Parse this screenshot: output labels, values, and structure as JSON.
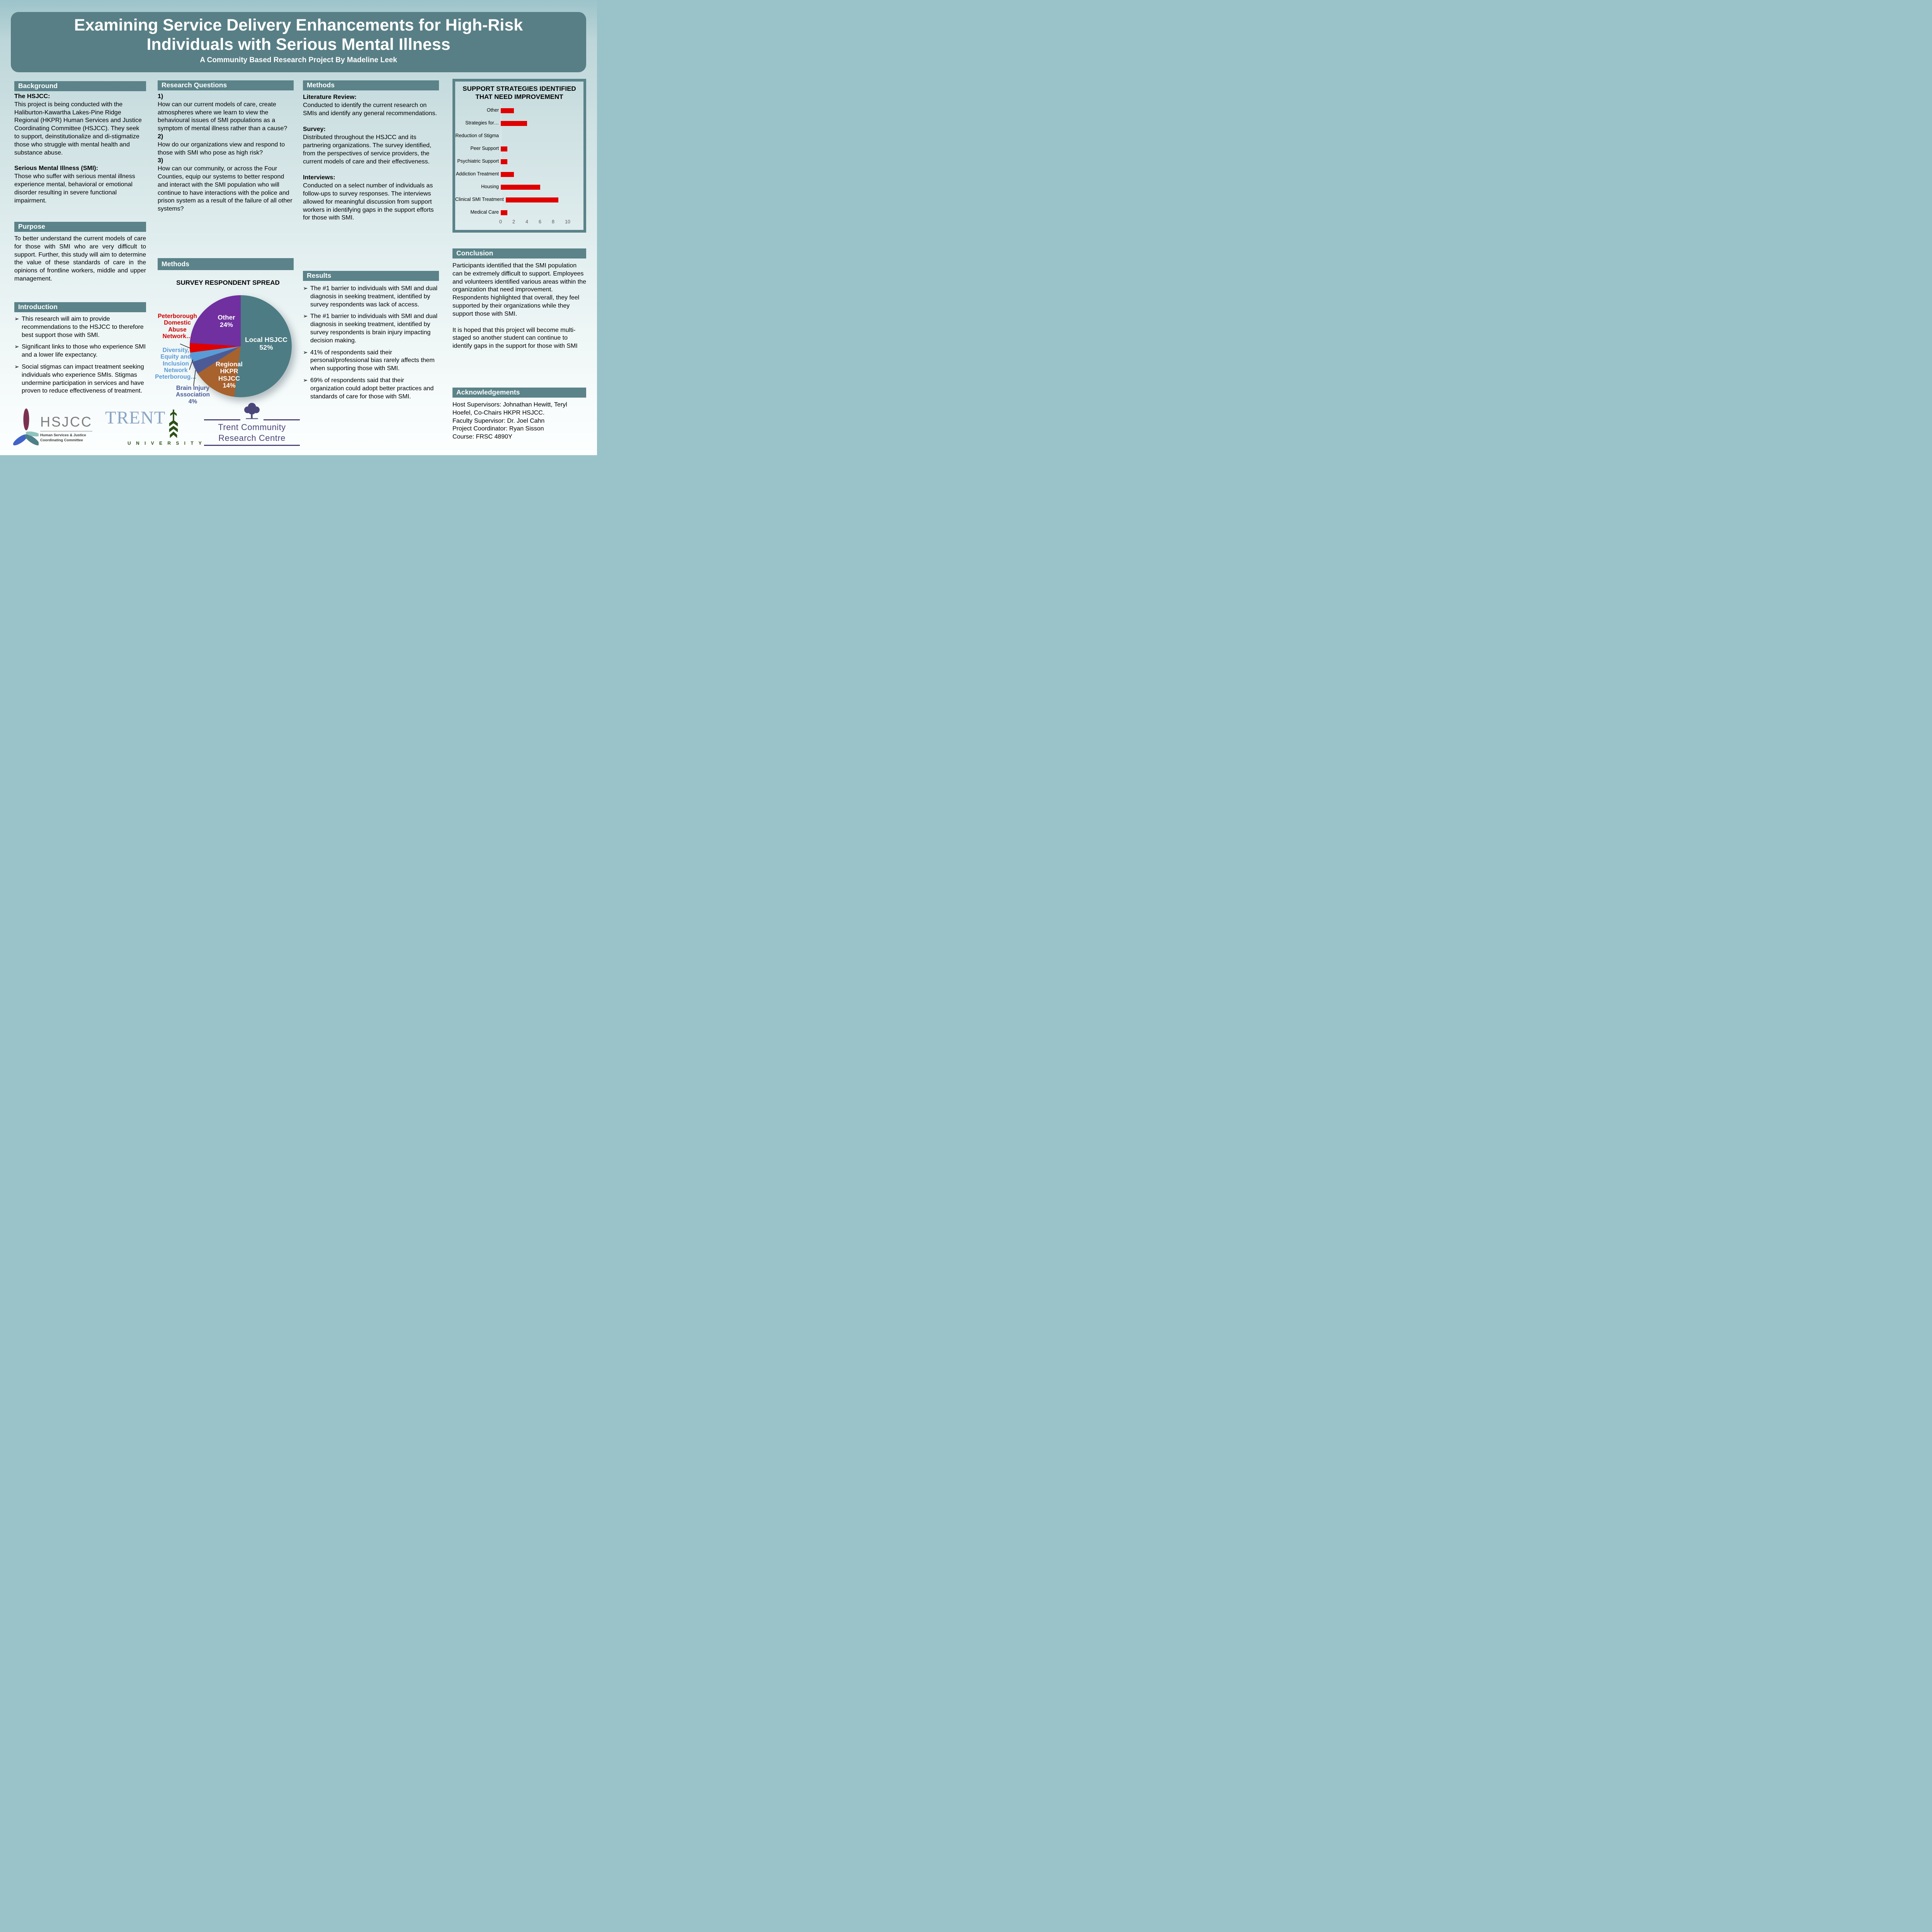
{
  "poster": {
    "title": "Examining Service Delivery Enhancements for High-Risk Individuals with Serious Mental Illness",
    "subtitle": "A Community Based Research Project By Madeline Leek"
  },
  "colors": {
    "banner": "#587f85",
    "section_header": "#5b8389",
    "bar_red": "#e00000",
    "page_top": "#9cc4ca",
    "page_bottom": "#fdffff"
  },
  "bullet_glyph": "➢",
  "background": {
    "header": "Background",
    "hsjcc_label": "The HSJCC:",
    "hsjcc_text": "This project is being conducted with the Haliburton-Kawartha Lakes-Pine Ridge Regional (HKPR) Human Services and Justice Coordinating Committee (HSJCC). They seek to support, deinstitutionalize and di-stigmatize those who struggle with mental health and substance abuse.",
    "smi_label": "Serious Mental Illness (SMI):",
    "smi_text": "Those who suffer with serious mental illness experience mental, behavioral or emotional disorder resulting in severe functional impairment."
  },
  "purpose": {
    "header": "Purpose",
    "text": "To better understand the current models of care for those with SMI who are very difficult to support. Further, this study will aim to determine the value of these standards of care in the opinions of frontline workers, middle and upper management."
  },
  "introduction": {
    "header": "Introduction",
    "bullets": [
      "This research will aim to provide recommendations to the HSJCC to therefore best support those with SMI.",
      "Significant links to those who experience SMI and a lower life expectancy.",
      "Social stigmas can impact treatment seeking individuals who experience SMIs. Stigmas undermine participation in services and have proven to reduce effectiveness of treatment."
    ]
  },
  "research_questions": {
    "header": "Research Questions",
    "items": [
      {
        "num": "1)",
        "text": "How can our current models of care, create atmospheres where we learn to view the behavioural issues of SMI populations as a symptom of mental illness rather than a cause?"
      },
      {
        "num": "2)",
        "text": "How do our organizations view and respond to those with SMI who pose as high risk?"
      },
      {
        "num": "3)",
        "text": "How can our community, or across the Four Counties, equip our systems to better respond and interact with the SMI population who will continue to have interactions with the police and prison system as a result of the failure of all other systems?"
      }
    ]
  },
  "methods_mid": {
    "header": "Methods"
  },
  "methods": {
    "header": "Methods",
    "sections": [
      {
        "label": "Literature Review:",
        "text": "Conducted to identify the current research on SMIs and identify any general recommendations."
      },
      {
        "label": "Survey:",
        "text": "Distributed throughout the HSJCC and its partnering organizations. The survey identified, from the perspectives of service providers, the current models of care and their effectiveness."
      },
      {
        "label": "Interviews:",
        "text": "Conducted on a select number of individuals as follow-ups to survey responses. The interviews allowed for meaningful discussion from support workers in identifying gaps in the support efforts for those with SMI."
      }
    ]
  },
  "results": {
    "header": "Results",
    "bullets": [
      "The #1 barrier to individuals with SMI and dual diagnosis in seeking treatment, identified by survey respondents was lack of access.",
      "The #1 barrier to individuals with SMI and dual diagnosis in seeking treatment, identified by survey respondents is brain injury impacting decision making.",
      "41% of respondents said their personal/professional bias rarely affects them when supporting those with SMI.",
      "69% of respondents said that their organization could adopt better practices and standards of care for those with SMI."
    ]
  },
  "conclusion": {
    "header": "Conclusion",
    "paragraphs": [
      "Participants identified that the SMI population can be extremely difficult to support. Employees and volunteers identified various areas within the organization that need improvement. Respondents highlighted that overall, they feel supported by their organizations while they support those with SMI.",
      "It is hoped that this project will become multi-staged so another student can continue to identify gaps in the support for those with SMI"
    ]
  },
  "acknowledgements": {
    "header": "Acknowledgements",
    "lines": [
      "Host Supervisors: Johnathan Hewitt, Teryl Hoefel, Co-Chairs HKPR HSJCC.",
      "Faculty Supervisor: Dr. Joel Cahn",
      "Project Coordinator: Ryan Sisson",
      "Course: FRSC 4890Y"
    ]
  },
  "logos": {
    "hsjcc": {
      "abbr": "HSJCC",
      "tagline1": "Human Services & Justice",
      "tagline2": "Coordinating Committee"
    },
    "trent": {
      "name": "TRENT",
      "sub": "U N I V E R S I T Y"
    },
    "tcrc": {
      "line1": "Trent Community",
      "line2": "Research Centre"
    }
  },
  "chart_data": [
    {
      "type": "bar",
      "orientation": "horizontal",
      "title": "SUPPORT STRATEGIES IDENTIFIED THAT NEED IMPROVEMENT",
      "categories": [
        "Other",
        "Strategies for…",
        "Reduction of Stigma",
        "Peer Support",
        "Psychiatric Support",
        "Addiction Treatment",
        "Housing",
        "Clinical SMI Treatment",
        "Medical Care"
      ],
      "values": [
        2,
        4,
        0,
        1,
        1,
        2,
        6,
        8,
        1
      ],
      "xlabel": "",
      "ylabel": "",
      "xlim": [
        0,
        10
      ],
      "x_ticks": [
        0,
        2,
        4,
        6,
        8,
        10
      ],
      "bar_color": "#e00000",
      "grid": false,
      "legend": "none"
    },
    {
      "type": "pie",
      "title": "SURVEY RESPONDENT SPREAD",
      "start_angle_deg": 0,
      "direction": "clockwise",
      "slices": [
        {
          "name": "Local HSJCC",
          "value": 52,
          "color": "#4d7c84",
          "label": "Local HSJCC\n52%",
          "label_color": "#ffffff"
        },
        {
          "name": "Regional HKPR HSJCC",
          "value": 14,
          "color": "#a7622e",
          "label": "Regional\nHKPR\nHSJCC\n14%",
          "label_color": "#ffffff"
        },
        {
          "name": "Brain Injury Association",
          "value": 4,
          "color": "#4c5b96",
          "label": "Brain Injury\nAssociation\n4%",
          "label_color": "#4c5b96"
        },
        {
          "name": "Diversity, Equity and Inclusion Network Peterborough",
          "value": 3,
          "color": "#5b9bd5",
          "label": "Diversity,\nEquity and\nInclusion\nNetwork\nPeterboroug…",
          "label_color": "#5b9bd5"
        },
        {
          "name": "Peterborough Domestic Abuse Network",
          "value": 3,
          "color": "#e00000",
          "label": "Peterborough\nDomestic\nAbuse\nNetwork…",
          "label_color": "#d00000"
        },
        {
          "name": "Other",
          "value": 24,
          "color": "#7030a0",
          "label": "Other\n24%",
          "label_color": "#ffffff"
        }
      ]
    }
  ]
}
